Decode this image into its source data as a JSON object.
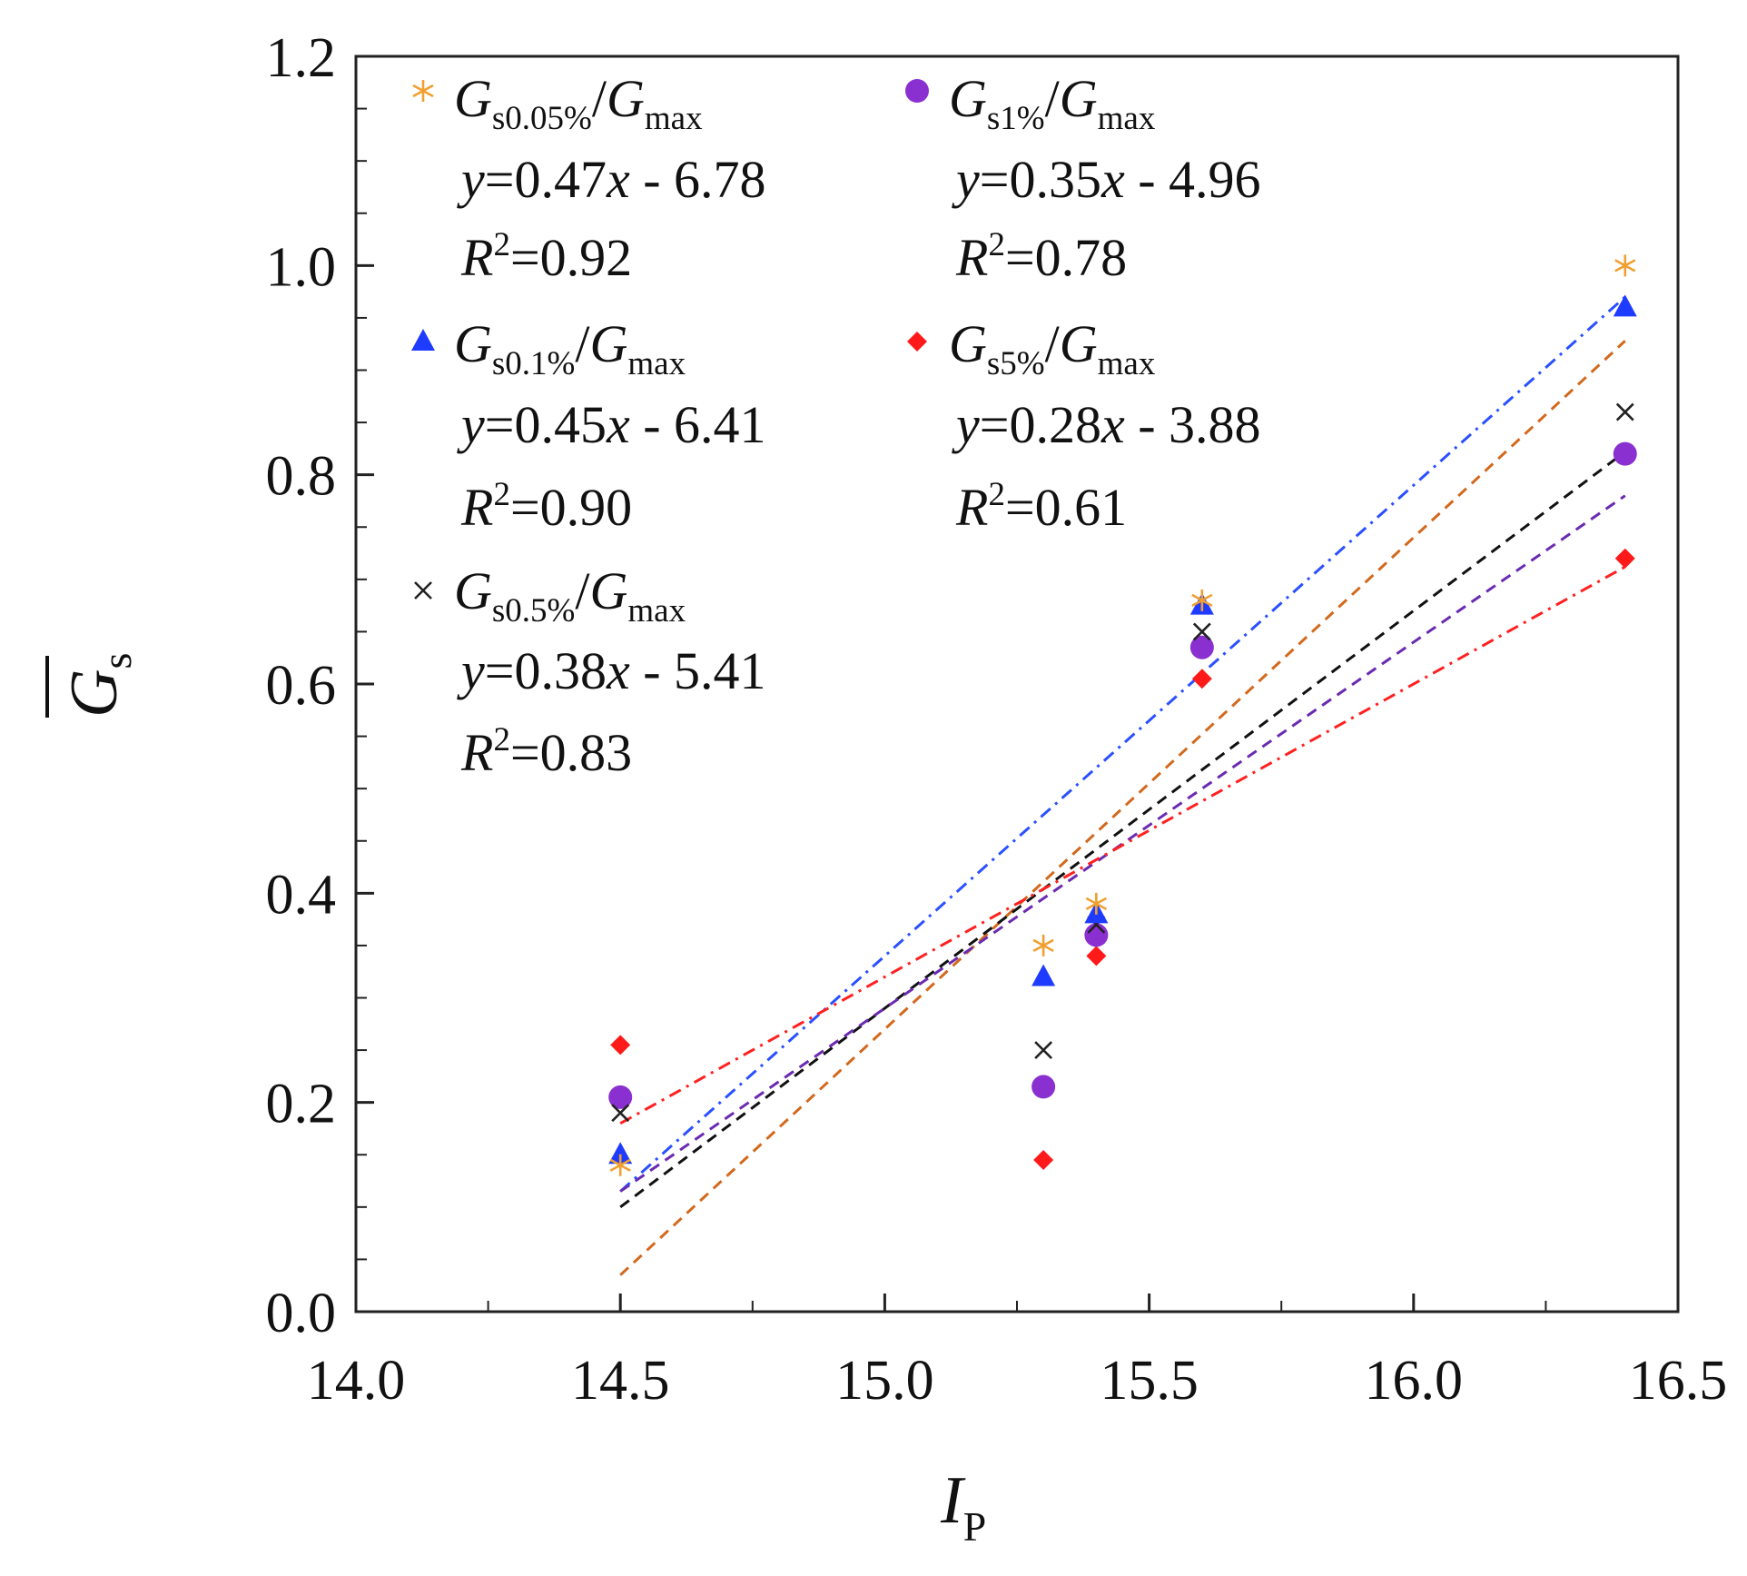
{
  "chart_data": {
    "type": "scatter",
    "title": "",
    "xlabel": {
      "main": "I",
      "sub": "P"
    },
    "ylabel": {
      "main": "G",
      "sub": "s",
      "overbar": true
    },
    "xlim": [
      14.0,
      16.5
    ],
    "ylim": [
      0.0,
      1.2
    ],
    "xticks": [
      "14.0",
      "14.5",
      "15.0",
      "15.5",
      "16.0",
      "16.5"
    ],
    "yticks": [
      "0.0",
      "0.2",
      "0.4",
      "0.6",
      "0.8",
      "1.0",
      "1.2"
    ],
    "legend_position": "top-left",
    "grid": false,
    "series": [
      {
        "key": "s005",
        "name_G": "G",
        "name_sub": "s0.05%",
        "name_slash": "/",
        "name_G2": "G",
        "name_sub2": "max",
        "marker": "asterisk",
        "marker_color": "#f0a030",
        "line_color": "#d2691e",
        "line_style": "dashed",
        "x": [
          14.5,
          15.3,
          15.4,
          15.6,
          16.4
        ],
        "y": [
          0.14,
          0.35,
          0.39,
          0.68,
          1.0
        ],
        "fit_slope": 0.47,
        "fit_intercept": -6.78,
        "eq_y": "y",
        "eq_mid": "=0.47",
        "eq_x": "x",
        "eq_rest": " - 6.78",
        "r2_R": "R",
        "r2_sup": "2",
        "r2_val": "=0.92"
      },
      {
        "key": "s01",
        "name_G": "G",
        "name_sub": "s0.1%",
        "name_slash": "/",
        "name_G2": "G",
        "name_sub2": "max",
        "marker": "triangle",
        "marker_color": "#1f3bff",
        "line_color": "#2a50ff",
        "line_style": "dashdot",
        "x": [
          14.5,
          15.3,
          15.4,
          15.6,
          16.4
        ],
        "y": [
          0.15,
          0.32,
          0.38,
          0.675,
          0.96
        ],
        "fit_slope": 0.45,
        "fit_intercept": -6.41,
        "eq_y": "y",
        "eq_mid": "=0.45",
        "eq_x": "x",
        "eq_rest": " - 6.41",
        "r2_R": "R",
        "r2_sup": "2",
        "r2_val": "=0.90"
      },
      {
        "key": "s05",
        "name_G": "G",
        "name_sub": "s0.5%",
        "name_slash": "/",
        "name_G2": "G",
        "name_sub2": "max",
        "marker": "x",
        "marker_color": "#222222",
        "line_color": "#111111",
        "line_style": "dashed",
        "x": [
          14.5,
          15.3,
          15.4,
          15.6,
          16.4
        ],
        "y": [
          0.19,
          0.25,
          0.37,
          0.65,
          0.86
        ],
        "fit_slope": 0.38,
        "fit_intercept": -5.41,
        "eq_y": "y",
        "eq_mid": "=0.38",
        "eq_x": "x",
        "eq_rest": " - 5.41",
        "r2_R": "R",
        "r2_sup": "2",
        "r2_val": "=0.83"
      },
      {
        "key": "s1",
        "name_G": "G",
        "name_sub": "s1%",
        "name_slash": "/",
        "name_G2": "G",
        "name_sub2": "max",
        "marker": "circle",
        "marker_color": "#8a2fd0",
        "line_color": "#6a2bb0",
        "line_style": "dashed",
        "x": [
          14.5,
          15.3,
          15.4,
          15.6,
          16.4
        ],
        "y": [
          0.205,
          0.215,
          0.36,
          0.635,
          0.82
        ],
        "fit_slope": 0.35,
        "fit_intercept": -4.96,
        "eq_y": "y",
        "eq_mid": "=0.35",
        "eq_x": "x",
        "eq_rest": " - 4.96",
        "r2_R": "R",
        "r2_sup": "2",
        "r2_val": "=0.78"
      },
      {
        "key": "s5",
        "name_G": "G",
        "name_sub": "s5%",
        "name_slash": "/",
        "name_G2": "G",
        "name_sub2": "max",
        "marker": "diamond",
        "marker_color": "#ff1a1a",
        "line_color": "#ff2020",
        "line_style": "dashdot",
        "x": [
          14.5,
          15.3,
          15.4,
          15.6,
          16.4
        ],
        "y": [
          0.255,
          0.145,
          0.34,
          0.605,
          0.72
        ],
        "fit_slope": 0.28,
        "fit_intercept": -3.88,
        "eq_y": "y",
        "eq_mid": "=0.28",
        "eq_x": "x",
        "eq_rest": " - 3.88",
        "r2_R": "R",
        "r2_sup": "2",
        "r2_val": "=0.61"
      }
    ],
    "fit_x_range": [
      14.5,
      16.4
    ]
  }
}
